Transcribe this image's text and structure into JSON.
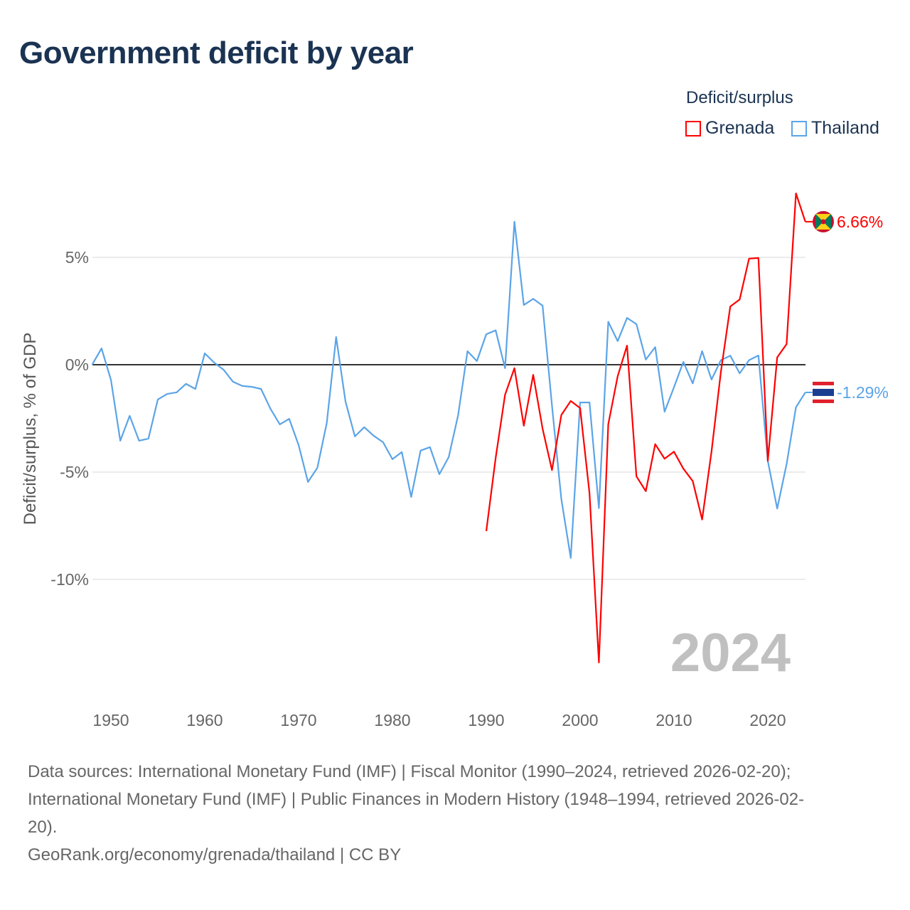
{
  "title": "Government deficit by year",
  "legend": {
    "title": "Deficit/surplus",
    "items": [
      {
        "name": "Grenada",
        "color": "#ff0000"
      },
      {
        "name": "Thailand",
        "color": "#5ba4e8"
      }
    ]
  },
  "year_label": "2024",
  "source_lines": [
    "Data sources: International Monetary Fund (IMF) | Fiscal Monitor (1990–2024, retrieved 2026-02-20);",
    "International Monetary Fund (IMF) | Public Finances in Modern History (1948–1994, retrieved 2026-02-",
    "20).",
    "GeoRank.org/economy/grenada/thailand | CC BY"
  ],
  "chart_data": {
    "type": "line",
    "title": "Government deficit by year",
    "xlabel": "",
    "ylabel": "Deficit/surplus, % of GDP",
    "xlim": [
      1948,
      2024
    ],
    "ylim": [
      -14.5,
      8.5
    ],
    "yticks": [
      {
        "value": 5,
        "label": "5%"
      },
      {
        "value": 0,
        "label": "0%"
      },
      {
        "value": -5,
        "label": "-5%"
      },
      {
        "value": -10,
        "label": "-10%"
      }
    ],
    "xticks": [
      1950,
      1960,
      1970,
      1980,
      1990,
      2000,
      2010,
      2020
    ],
    "series": [
      {
        "name": "Thailand",
        "color": "#5ba4e8",
        "end_label": "-1.29%",
        "start_year": 1948,
        "values": [
          0.0,
          0.76,
          -0.7,
          -3.54,
          -2.38,
          -3.54,
          -3.44,
          -1.62,
          -1.36,
          -1.29,
          -0.89,
          -1.13,
          0.53,
          0.1,
          -0.23,
          -0.79,
          -0.99,
          -1.03,
          -1.13,
          -2.05,
          -2.78,
          -2.52,
          -3.74,
          -5.46,
          -4.8,
          -2.72,
          1.29,
          -1.72,
          -3.34,
          -2.91,
          -3.31,
          -3.61,
          -4.4,
          -4.07,
          -6.16,
          -4.0,
          -3.84,
          -5.1,
          -4.3,
          -2.35,
          0.63,
          0.17,
          1.42,
          1.6,
          -0.16,
          6.66,
          2.78,
          3.07,
          2.75,
          -1.9,
          -6.27,
          -9.0,
          -1.76,
          -1.76,
          -6.68,
          2.0,
          1.1,
          2.18,
          1.89,
          0.24,
          0.82,
          -2.19,
          -1.05,
          0.13,
          -0.87,
          0.63,
          -0.69,
          0.21,
          0.42,
          -0.4,
          0.21,
          0.43,
          -4.48,
          -6.7,
          -4.63,
          -1.98,
          -1.29
        ]
      },
      {
        "name": "Grenada",
        "color": "#ff0000",
        "end_label": "6.66%",
        "start_year": 1990,
        "values": [
          -7.75,
          -4.34,
          -1.4,
          -0.16,
          -2.84,
          -0.47,
          -2.98,
          -4.91,
          -2.34,
          -1.69,
          -2.02,
          -5.99,
          -13.87,
          -2.77,
          -0.54,
          0.89,
          -5.2,
          -5.89,
          -3.7,
          -4.38,
          -4.05,
          -4.84,
          -5.42,
          -7.21,
          -4.05,
          -0.33,
          2.71,
          3.04,
          4.94,
          4.97,
          -4.48,
          0.34,
          0.96,
          7.98,
          6.66
        ]
      }
    ]
  }
}
